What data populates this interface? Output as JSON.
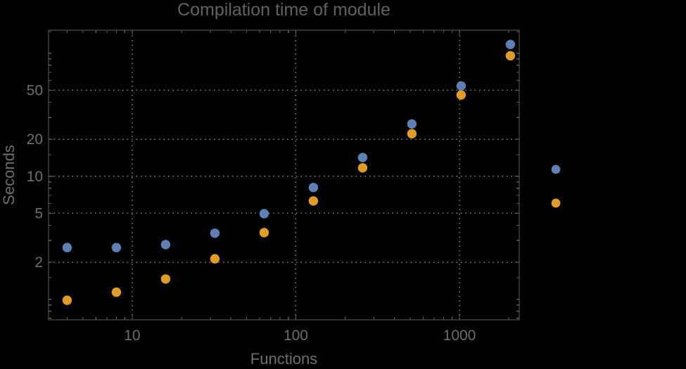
{
  "chart_data": {
    "type": "scatter",
    "title": "Compilation time of module",
    "xlabel": "Functions",
    "ylabel": "Seconds",
    "xscale": "log",
    "yscale": "log",
    "xlim": [
      3.08,
      2320
    ],
    "ylim": [
      0.68,
      154
    ],
    "grid": "dotted lines at labeled major ticks only",
    "frame": true,
    "background": "#000000",
    "title_color": "#616161",
    "text_color": "#6e6e6e",
    "frame_color": "#5d5d5d",
    "grid_color": "#848484",
    "x_major_ticks": [
      {
        "value": 10,
        "label": "10"
      },
      {
        "value": 100,
        "label": "100"
      },
      {
        "value": 1000,
        "label": "1000"
      }
    ],
    "x_minor_ticks": [
      4,
      5,
      6,
      7,
      8,
      9,
      20,
      30,
      40,
      50,
      60,
      70,
      80,
      90,
      200,
      300,
      400,
      500,
      600,
      700,
      800,
      900,
      2000
    ],
    "y_major_ticks": [
      {
        "value": 2,
        "label": "2"
      },
      {
        "value": 5,
        "label": "5"
      },
      {
        "value": 10,
        "label": "10"
      },
      {
        "value": 20,
        "label": "20"
      },
      {
        "value": 50,
        "label": "50"
      }
    ],
    "y_minor_ticks": [
      0.7,
      0.8,
      0.9,
      1,
      1.5,
      3,
      4,
      6,
      7,
      8,
      9,
      15,
      30,
      40,
      60,
      70,
      80,
      90,
      100,
      150
    ],
    "x": [
      4,
      8,
      16,
      32,
      64,
      128,
      256,
      512,
      1024,
      2048
    ],
    "series": [
      {
        "name": "blue",
        "color": "#5E81B5",
        "y": [
          2.63,
          2.63,
          2.78,
          3.44,
          4.96,
          8.1,
          14.2,
          26.6,
          54.2,
          118
        ]
      },
      {
        "name": "orange",
        "color": "#E19C24",
        "y": [
          0.98,
          1.14,
          1.46,
          2.13,
          3.48,
          6.3,
          11.7,
          22.2,
          45.8,
          95.5
        ]
      }
    ],
    "legend": {
      "position": "right-outside",
      "entries": [
        {
          "name": "blue",
          "color": "#5E81B5"
        },
        {
          "name": "orange",
          "color": "#E19C24"
        }
      ]
    }
  }
}
